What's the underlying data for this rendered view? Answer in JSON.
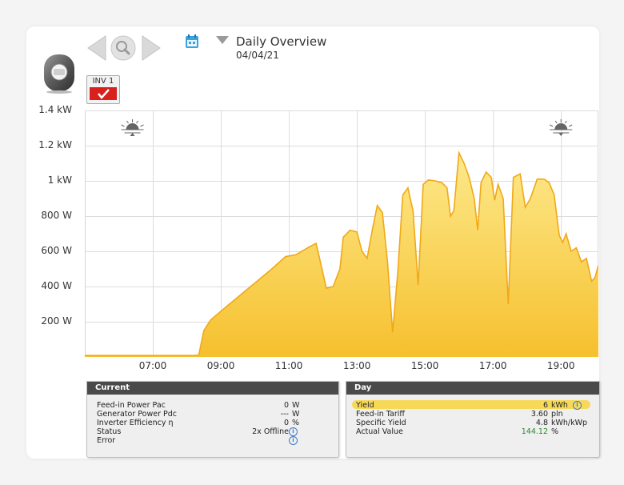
{
  "header": {
    "title": "Daily Overview",
    "date": "04/04/21"
  },
  "inverter": {
    "label": "INV 1",
    "selected": true
  },
  "colors": {
    "curve_stroke": "#f0a818",
    "curve_fill_top": "#fde98c",
    "curve_fill_bottom": "#f6c02e",
    "panel_header": "#4a4a4a",
    "accent_red": "#d8201d",
    "highlight": "#f7d95a"
  },
  "chart_data": {
    "type": "area",
    "y_tick_labels": [
      "1.4 kW",
      "1.2 kW",
      "1 kW",
      "800 W",
      "600 W",
      "400 W",
      "200 W"
    ],
    "y_ticks_w": [
      1400,
      1200,
      1000,
      800,
      600,
      400,
      200
    ],
    "x_tick_labels": [
      "07:00",
      "09:00",
      "11:00",
      "13:00",
      "15:00",
      "17:00",
      "19:00"
    ],
    "x_ticks_h": [
      7,
      9,
      11,
      13,
      15,
      17,
      19
    ],
    "xlim": [
      5.0,
      20.1
    ],
    "ylim": [
      0,
      1400
    ],
    "grid": true,
    "sunrise_hour": 6.4,
    "sunset_hour": 19.0,
    "points": [
      [
        5.0,
        8
      ],
      [
        8.2,
        8
      ],
      [
        8.35,
        10
      ],
      [
        8.5,
        150
      ],
      [
        8.7,
        210
      ],
      [
        9.0,
        260
      ],
      [
        9.5,
        340
      ],
      [
        10.0,
        420
      ],
      [
        10.5,
        500
      ],
      [
        10.9,
        570
      ],
      [
        11.2,
        580
      ],
      [
        11.6,
        625
      ],
      [
        11.8,
        645
      ],
      [
        11.95,
        520
      ],
      [
        12.1,
        390
      ],
      [
        12.3,
        400
      ],
      [
        12.5,
        500
      ],
      [
        12.6,
        680
      ],
      [
        12.8,
        720
      ],
      [
        13.0,
        710
      ],
      [
        13.15,
        600
      ],
      [
        13.3,
        560
      ],
      [
        13.45,
        720
      ],
      [
        13.6,
        860
      ],
      [
        13.75,
        820
      ],
      [
        13.9,
        540
      ],
      [
        14.05,
        140
      ],
      [
        14.2,
        480
      ],
      [
        14.35,
        920
      ],
      [
        14.5,
        960
      ],
      [
        14.65,
        830
      ],
      [
        14.8,
        410
      ],
      [
        14.95,
        980
      ],
      [
        15.1,
        1005
      ],
      [
        15.3,
        1000
      ],
      [
        15.5,
        990
      ],
      [
        15.65,
        960
      ],
      [
        15.75,
        800
      ],
      [
        15.85,
        830
      ],
      [
        16.0,
        1160
      ],
      [
        16.15,
        1100
      ],
      [
        16.3,
        1020
      ],
      [
        16.45,
        900
      ],
      [
        16.55,
        720
      ],
      [
        16.65,
        990
      ],
      [
        16.8,
        1050
      ],
      [
        16.95,
        1020
      ],
      [
        17.05,
        890
      ],
      [
        17.15,
        980
      ],
      [
        17.3,
        900
      ],
      [
        17.45,
        300
      ],
      [
        17.6,
        1020
      ],
      [
        17.8,
        1040
      ],
      [
        17.95,
        850
      ],
      [
        18.1,
        900
      ],
      [
        18.3,
        1010
      ],
      [
        18.5,
        1010
      ],
      [
        18.65,
        990
      ],
      [
        18.8,
        920
      ],
      [
        18.95,
        690
      ],
      [
        19.05,
        650
      ],
      [
        19.15,
        700
      ],
      [
        19.3,
        600
      ],
      [
        19.45,
        620
      ],
      [
        19.6,
        540
      ],
      [
        19.75,
        560
      ],
      [
        19.9,
        430
      ],
      [
        20.0,
        450
      ],
      [
        20.1,
        520
      ]
    ]
  },
  "current_panel": {
    "title": "Current",
    "rows": [
      {
        "label": "Feed-in Power Pac",
        "value": "0",
        "unit": "W"
      },
      {
        "label": "Generator Power Pdc",
        "value": "---",
        "unit": "W"
      },
      {
        "label": "Inverter Efficiency η",
        "value": "0",
        "unit": "%"
      },
      {
        "label": "Status",
        "value": "2x Offline",
        "unit": ""
      },
      {
        "label": "Error",
        "value": "",
        "unit": ""
      }
    ]
  },
  "day_panel": {
    "title": "Day",
    "rows": [
      {
        "label": "Yield",
        "value": "6",
        "unit": "kWh"
      },
      {
        "label": "Feed-in Tariff",
        "value": "3.60",
        "unit": "pln"
      },
      {
        "label": "Specific Yield",
        "value": "4.8",
        "unit": "kWh/kWp"
      },
      {
        "label": "Actual Value",
        "value": "144.12",
        "unit": "%"
      }
    ]
  },
  "icons": {
    "inverter": "inverter-device-icon",
    "prev": "arrow-left-icon",
    "zoom": "magnifier-icon",
    "next": "arrow-right-icon",
    "calendar": "calendar-icon",
    "dropdown": "triangle-down-icon",
    "check": "checkmark-icon",
    "sunrise": "sunrise-icon",
    "sunset": "sunset-icon",
    "info": "info-icon"
  }
}
